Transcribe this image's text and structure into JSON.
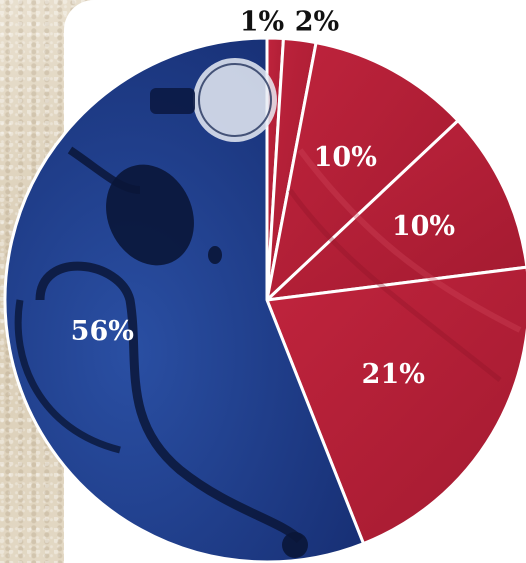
{
  "chart_data": {
    "type": "pie",
    "slices": [
      {
        "label": "1%",
        "value": 1,
        "color": "#b51f36"
      },
      {
        "label": "2%",
        "value": 2,
        "color": "#b51f36"
      },
      {
        "label": "10%",
        "value": 10,
        "color": "#b8203a"
      },
      {
        "label": "10%",
        "value": 10,
        "color": "#b51f36"
      },
      {
        "label": "21%",
        "value": 21,
        "color": "#b31e35"
      },
      {
        "label": "56%",
        "value": 56,
        "color": "#1e3f8f"
      }
    ],
    "start_angle": "12 o'clock",
    "direction": "clockwise",
    "separator_color": "#ffffff",
    "label_colors": {
      "outside": "#111111",
      "inside": "#ffffff"
    }
  }
}
